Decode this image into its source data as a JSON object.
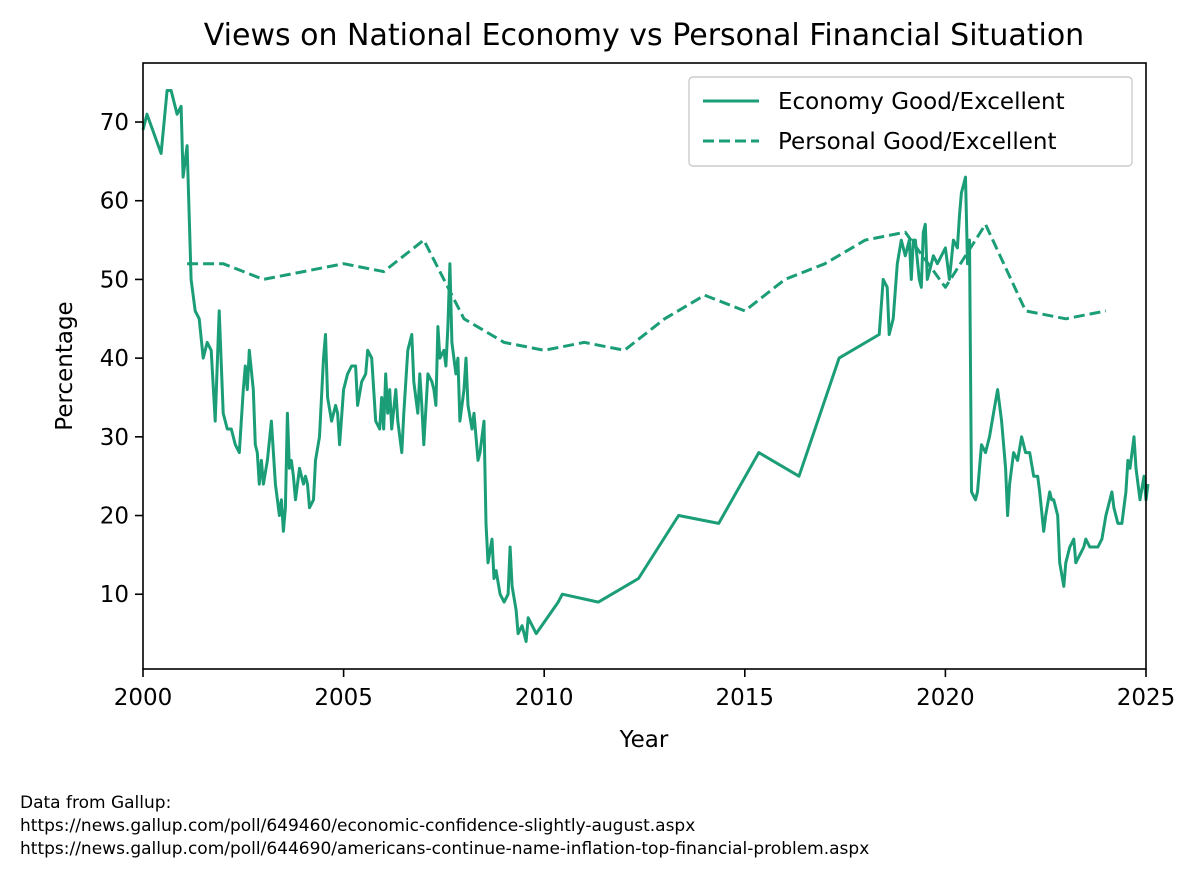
{
  "chart_data": {
    "type": "line",
    "title": "Views on National Economy vs Personal Financial Situation",
    "xlabel": "Year",
    "ylabel": "Percentage",
    "xlim": [
      2000,
      2025
    ],
    "ylim": [
      0.5,
      77.5
    ],
    "xticks": [
      2000,
      2005,
      2010,
      2015,
      2020,
      2025
    ],
    "yticks": [
      10,
      20,
      30,
      40,
      50,
      60,
      70
    ],
    "grid": false,
    "legend": "top-right",
    "color": "#1b9e77",
    "series": [
      {
        "name": "Economy Good/Excellent",
        "style": "solid",
        "points": [
          [
            2000.0,
            69
          ],
          [
            2000.1,
            71
          ],
          [
            2000.45,
            66
          ],
          [
            2000.6,
            74
          ],
          [
            2000.7,
            74
          ],
          [
            2000.85,
            71
          ],
          [
            2000.95,
            72
          ],
          [
            2001.0,
            63
          ],
          [
            2001.1,
            67
          ],
          [
            2001.2,
            50
          ],
          [
            2001.3,
            46
          ],
          [
            2001.4,
            45
          ],
          [
            2001.5,
            40
          ],
          [
            2001.6,
            42
          ],
          [
            2001.7,
            41
          ],
          [
            2001.8,
            32
          ],
          [
            2001.9,
            46
          ],
          [
            2002.0,
            33
          ],
          [
            2002.1,
            31
          ],
          [
            2002.2,
            31
          ],
          [
            2002.3,
            29
          ],
          [
            2002.4,
            28
          ],
          [
            2002.5,
            36
          ],
          [
            2002.55,
            39
          ],
          [
            2002.6,
            36
          ],
          [
            2002.65,
            41
          ],
          [
            2002.75,
            36
          ],
          [
            2002.8,
            29
          ],
          [
            2002.85,
            28
          ],
          [
            2002.9,
            24
          ],
          [
            2002.95,
            27
          ],
          [
            2003.0,
            24
          ],
          [
            2003.1,
            27
          ],
          [
            2003.2,
            32
          ],
          [
            2003.3,
            24
          ],
          [
            2003.4,
            20
          ],
          [
            2003.45,
            22
          ],
          [
            2003.5,
            18
          ],
          [
            2003.55,
            21
          ],
          [
            2003.6,
            33
          ],
          [
            2003.65,
            26
          ],
          [
            2003.7,
            27
          ],
          [
            2003.75,
            25
          ],
          [
            2003.8,
            22
          ],
          [
            2003.9,
            26
          ],
          [
            2004.0,
            24
          ],
          [
            2004.05,
            25
          ],
          [
            2004.1,
            24
          ],
          [
            2004.15,
            21
          ],
          [
            2004.25,
            22
          ],
          [
            2004.3,
            27
          ],
          [
            2004.4,
            30
          ],
          [
            2004.5,
            40
          ],
          [
            2004.55,
            43
          ],
          [
            2004.6,
            35
          ],
          [
            2004.7,
            32
          ],
          [
            2004.8,
            34
          ],
          [
            2004.85,
            33
          ],
          [
            2004.9,
            29
          ],
          [
            2005.0,
            36
          ],
          [
            2005.1,
            38
          ],
          [
            2005.2,
            39
          ],
          [
            2005.3,
            39
          ],
          [
            2005.35,
            34
          ],
          [
            2005.45,
            37
          ],
          [
            2005.55,
            38
          ],
          [
            2005.6,
            41
          ],
          [
            2005.7,
            40
          ],
          [
            2005.8,
            32
          ],
          [
            2005.9,
            31
          ],
          [
            2005.95,
            35
          ],
          [
            2006.0,
            31
          ],
          [
            2006.05,
            38
          ],
          [
            2006.1,
            33
          ],
          [
            2006.15,
            36
          ],
          [
            2006.2,
            31
          ],
          [
            2006.3,
            36
          ],
          [
            2006.35,
            32
          ],
          [
            2006.45,
            28
          ],
          [
            2006.5,
            33
          ],
          [
            2006.6,
            41
          ],
          [
            2006.7,
            43
          ],
          [
            2006.75,
            37
          ],
          [
            2006.8,
            35
          ],
          [
            2006.85,
            33
          ],
          [
            2006.9,
            38
          ],
          [
            2006.95,
            34
          ],
          [
            2007.0,
            29
          ],
          [
            2007.1,
            38
          ],
          [
            2007.2,
            37
          ],
          [
            2007.25,
            36
          ],
          [
            2007.3,
            34
          ],
          [
            2007.35,
            44
          ],
          [
            2007.4,
            40
          ],
          [
            2007.5,
            41
          ],
          [
            2007.55,
            39
          ],
          [
            2007.6,
            44
          ],
          [
            2007.65,
            52
          ],
          [
            2007.7,
            42
          ],
          [
            2007.8,
            38
          ],
          [
            2007.85,
            40
          ],
          [
            2007.9,
            32
          ],
          [
            2008.0,
            36
          ],
          [
            2008.05,
            40
          ],
          [
            2008.1,
            34
          ],
          [
            2008.2,
            31
          ],
          [
            2008.25,
            33
          ],
          [
            2008.35,
            27
          ],
          [
            2008.4,
            28
          ],
          [
            2008.5,
            32
          ],
          [
            2008.55,
            19
          ],
          [
            2008.6,
            14
          ],
          [
            2008.7,
            17
          ],
          [
            2008.75,
            12
          ],
          [
            2008.8,
            13
          ],
          [
            2008.9,
            10
          ],
          [
            2009.0,
            9
          ],
          [
            2009.1,
            10
          ],
          [
            2009.15,
            16
          ],
          [
            2009.2,
            11
          ],
          [
            2009.3,
            8
          ],
          [
            2009.35,
            5
          ],
          [
            2009.45,
            6
          ],
          [
            2009.5,
            5
          ],
          [
            2009.55,
            4
          ],
          [
            2009.6,
            7
          ],
          [
            2009.7,
            6
          ],
          [
            2009.8,
            5
          ],
          [
            2010.35,
            9
          ],
          [
            2010.45,
            10
          ],
          [
            2011.35,
            9
          ],
          [
            2012.35,
            12
          ],
          [
            2013.35,
            20
          ],
          [
            2014.35,
            19
          ],
          [
            2015.35,
            28
          ],
          [
            2016.35,
            25
          ],
          [
            2017.35,
            40
          ],
          [
            2018.35,
            43
          ],
          [
            2018.45,
            50
          ],
          [
            2018.55,
            49
          ],
          [
            2018.6,
            43
          ],
          [
            2018.7,
            45
          ],
          [
            2018.8,
            52
          ],
          [
            2018.9,
            55
          ],
          [
            2019.0,
            53
          ],
          [
            2019.1,
            55
          ],
          [
            2019.15,
            50
          ],
          [
            2019.2,
            55
          ],
          [
            2019.25,
            55
          ],
          [
            2019.35,
            50
          ],
          [
            2019.4,
            49
          ],
          [
            2019.45,
            56
          ],
          [
            2019.5,
            57
          ],
          [
            2019.55,
            50
          ],
          [
            2019.6,
            51
          ],
          [
            2019.7,
            53
          ],
          [
            2019.8,
            52
          ],
          [
            2019.9,
            53
          ],
          [
            2020.0,
            54
          ],
          [
            2020.1,
            50
          ],
          [
            2020.2,
            55
          ],
          [
            2020.3,
            54
          ],
          [
            2020.35,
            58
          ],
          [
            2020.4,
            61
          ],
          [
            2020.45,
            62
          ],
          [
            2020.5,
            63
          ],
          [
            2020.55,
            52
          ],
          [
            2020.6,
            55
          ],
          [
            2020.65,
            23
          ],
          [
            2020.75,
            22
          ],
          [
            2020.8,
            23
          ],
          [
            2020.9,
            29
          ],
          [
            2021.0,
            28
          ],
          [
            2021.1,
            30
          ],
          [
            2021.2,
            33
          ],
          [
            2021.3,
            36
          ],
          [
            2021.4,
            32
          ],
          [
            2021.5,
            26
          ],
          [
            2021.55,
            20
          ],
          [
            2021.6,
            24
          ],
          [
            2021.7,
            28
          ],
          [
            2021.8,
            27
          ],
          [
            2021.9,
            30
          ],
          [
            2022.0,
            28
          ],
          [
            2022.1,
            28
          ],
          [
            2022.2,
            25
          ],
          [
            2022.3,
            25
          ],
          [
            2022.35,
            23
          ],
          [
            2022.45,
            18
          ],
          [
            2022.5,
            20
          ],
          [
            2022.6,
            23
          ],
          [
            2022.65,
            22
          ],
          [
            2022.7,
            22
          ],
          [
            2022.8,
            20
          ],
          [
            2022.85,
            14
          ],
          [
            2022.95,
            11
          ],
          [
            2023.0,
            14
          ],
          [
            2023.1,
            16
          ],
          [
            2023.2,
            17
          ],
          [
            2023.25,
            14
          ],
          [
            2023.35,
            15
          ],
          [
            2023.45,
            16
          ],
          [
            2023.5,
            17
          ],
          [
            2023.6,
            16
          ],
          [
            2023.7,
            16
          ],
          [
            2023.8,
            16
          ],
          [
            2023.9,
            17
          ],
          [
            2024.0,
            20
          ],
          [
            2024.1,
            22
          ],
          [
            2024.15,
            23
          ],
          [
            2024.2,
            21
          ],
          [
            2024.3,
            19
          ],
          [
            2024.4,
            19
          ],
          [
            2024.5,
            23
          ],
          [
            2024.55,
            27
          ],
          [
            2024.6,
            26
          ],
          [
            2024.7,
            30
          ],
          [
            2024.75,
            26
          ],
          [
            2024.85,
            22
          ],
          [
            2024.95,
            25
          ],
          [
            2025.0,
            22
          ],
          [
            2025.05,
            24
          ]
        ]
      },
      {
        "name": "Personal Good/Excellent",
        "style": "dashed",
        "points": [
          [
            2001.1,
            52
          ],
          [
            2002.0,
            52
          ],
          [
            2003.0,
            50
          ],
          [
            2004.0,
            51
          ],
          [
            2005.0,
            52
          ],
          [
            2006.0,
            51
          ],
          [
            2007.0,
            55
          ],
          [
            2008.0,
            45
          ],
          [
            2009.0,
            42
          ],
          [
            2010.0,
            41
          ],
          [
            2011.0,
            42
          ],
          [
            2012.0,
            41
          ],
          [
            2013.0,
            45
          ],
          [
            2014.0,
            48
          ],
          [
            2015.0,
            46
          ],
          [
            2016.0,
            50
          ],
          [
            2017.0,
            52
          ],
          [
            2018.0,
            55
          ],
          [
            2019.0,
            56
          ],
          [
            2020.0,
            49
          ],
          [
            2021.0,
            57
          ],
          [
            2022.0,
            46
          ],
          [
            2023.0,
            45
          ],
          [
            2024.0,
            46
          ]
        ]
      }
    ]
  },
  "footnote": {
    "line1": "Data from Gallup:",
    "line2": "https://news.gallup.com/poll/649460/economic-confidence-slightly-august.aspx",
    "line3": "https://news.gallup.com/poll/644690/americans-continue-name-inflation-top-financial-problem.aspx"
  }
}
